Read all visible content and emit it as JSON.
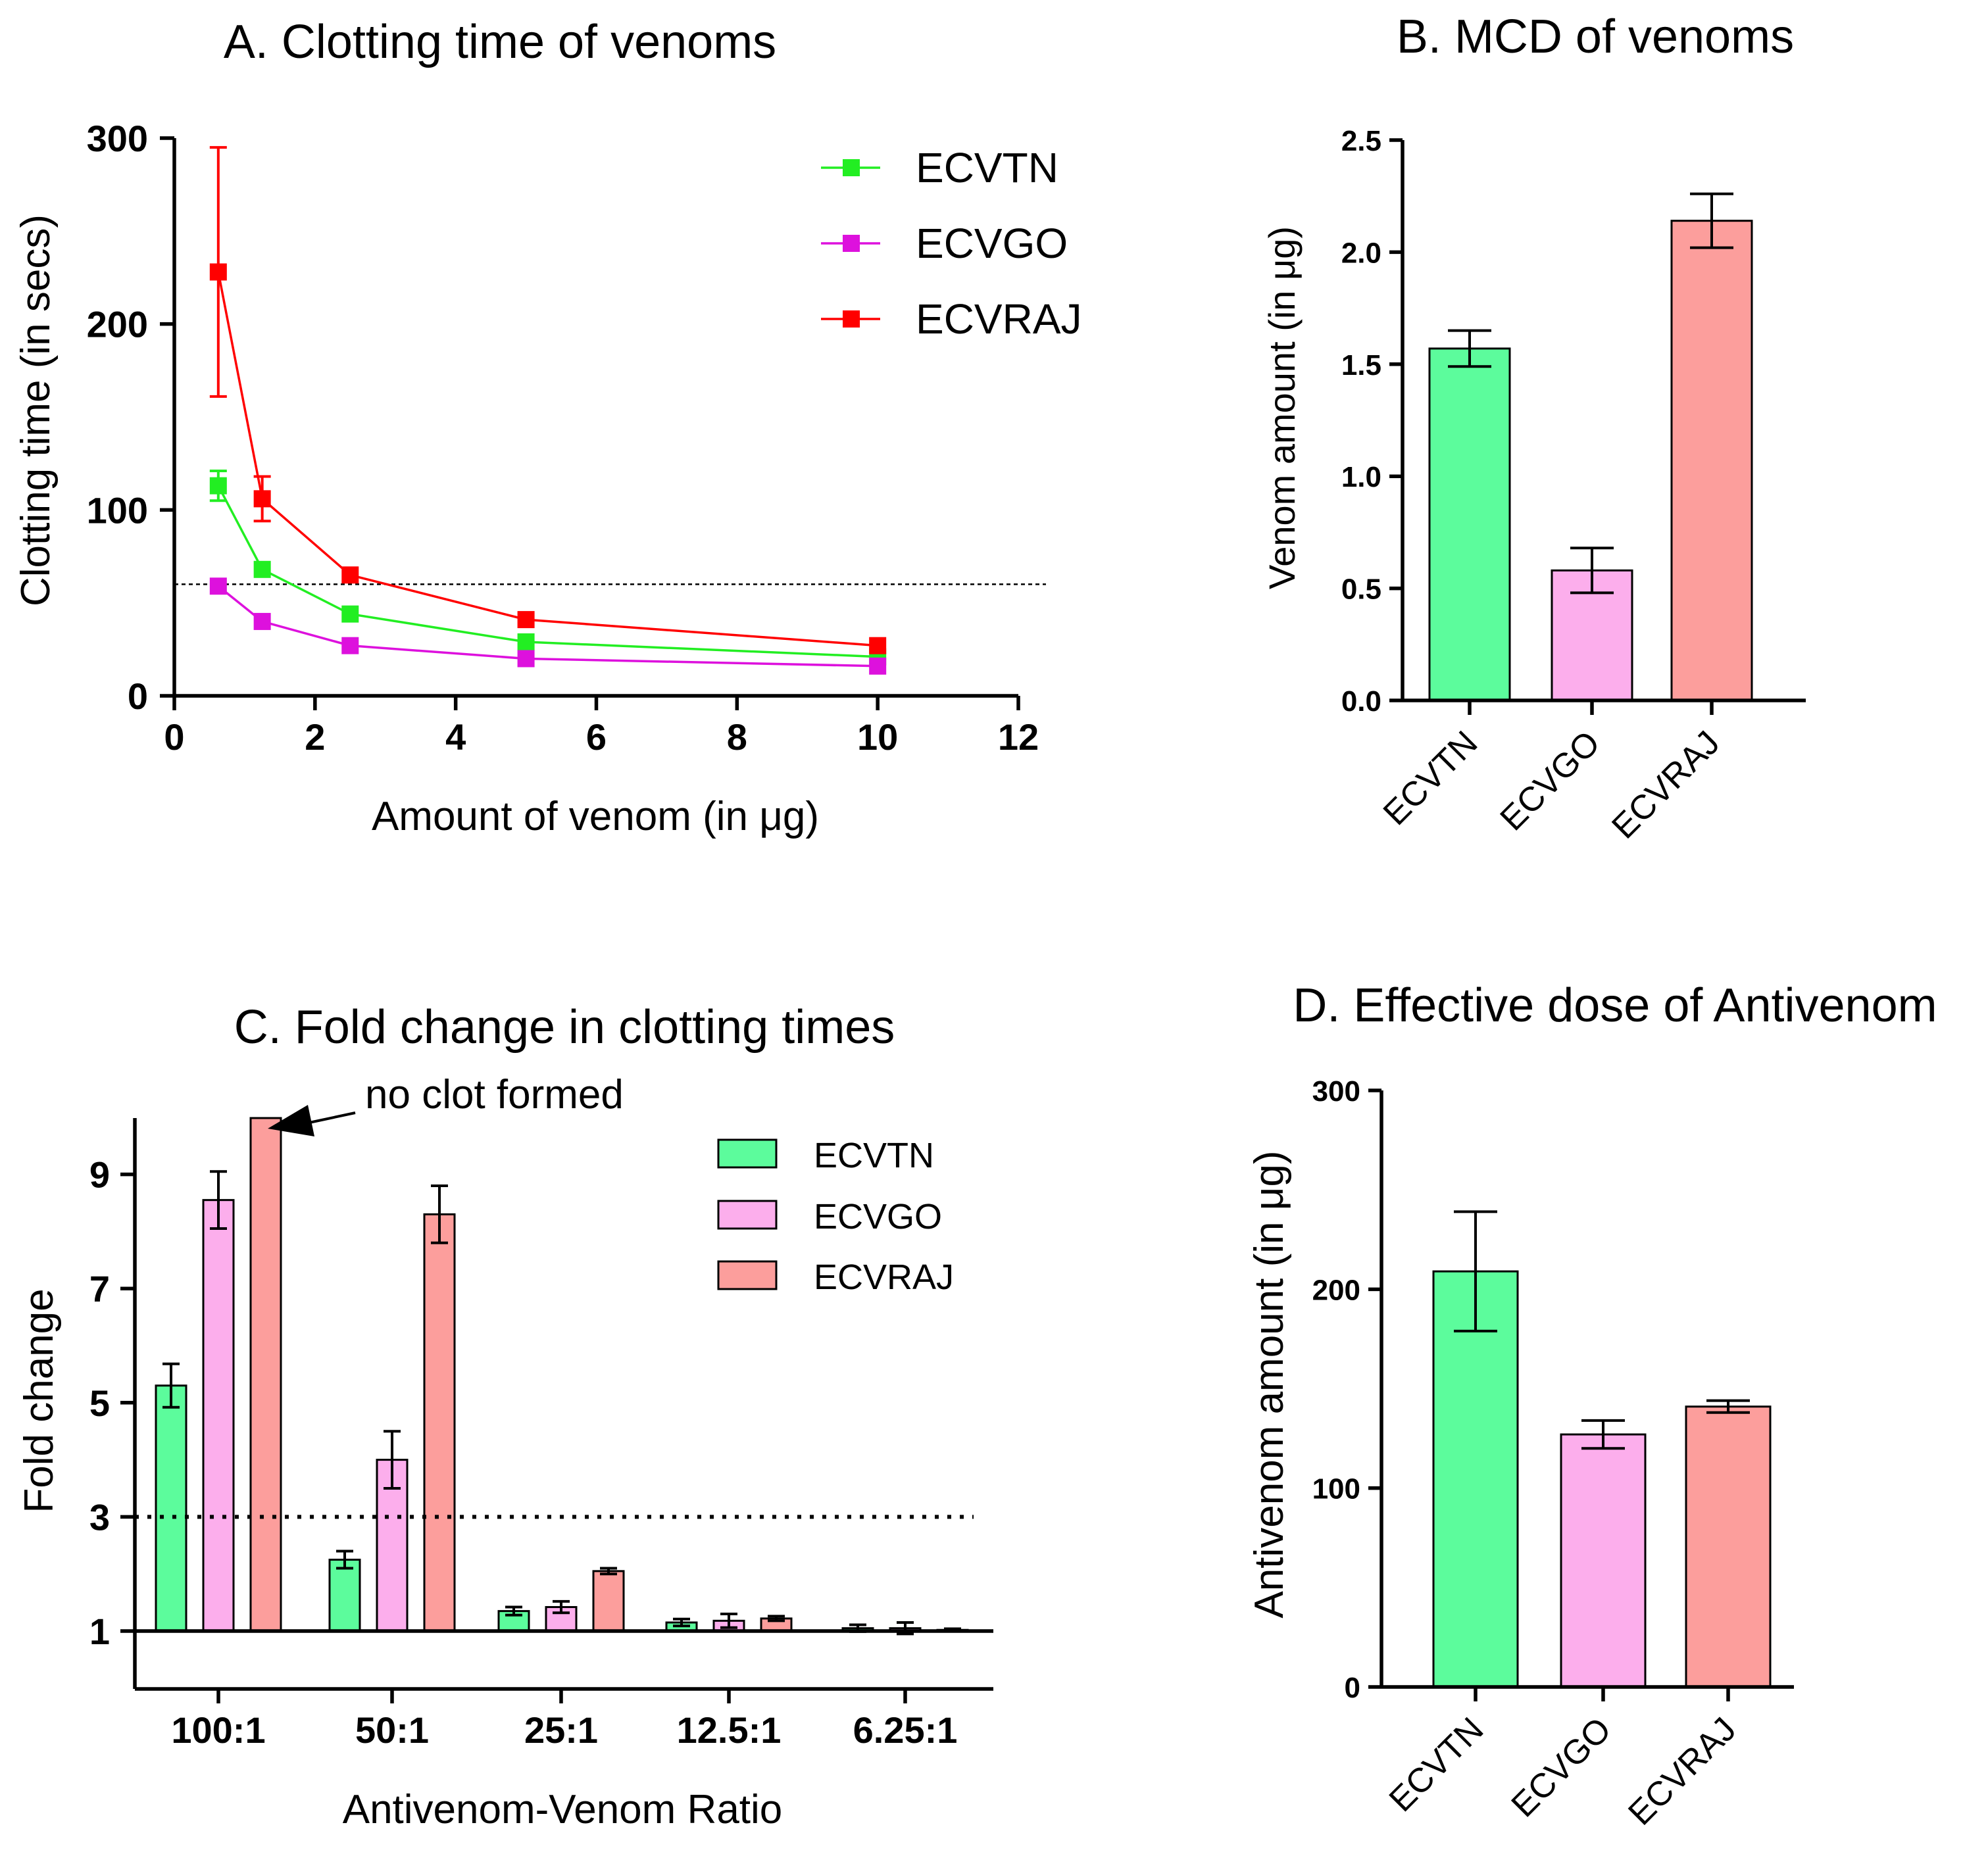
{
  "chart_data": [
    {
      "panel": "A",
      "type": "line",
      "title": "A. Clotting time of venoms",
      "xlabel": "Amount of venom (in μg)",
      "ylabel": "Clotting time (in secs)",
      "xlim": [
        0,
        12
      ],
      "ylim": [
        0,
        300
      ],
      "xticks": [
        0,
        2,
        4,
        6,
        8,
        10,
        12
      ],
      "yticks": [
        0,
        100,
        200,
        300
      ],
      "reference_line": 60,
      "x": [
        0.625,
        1.25,
        2.5,
        5,
        10
      ],
      "legend_position": "top-right",
      "series": [
        {
          "name": "ECVTN",
          "color": "#22ee22",
          "values": [
            113,
            68,
            44,
            29,
            21
          ],
          "errors": [
            8,
            0,
            0,
            0,
            0
          ]
        },
        {
          "name": "ECVGO",
          "color": "#dd11dd",
          "values": [
            59,
            40,
            27,
            20,
            16
          ],
          "errors": [
            0,
            0,
            0,
            0,
            0
          ]
        },
        {
          "name": "ECVRAJ",
          "color": "#ff0000",
          "values": [
            228,
            106,
            65,
            41,
            27
          ],
          "errors": [
            67,
            12,
            0,
            0,
            0
          ]
        }
      ]
    },
    {
      "panel": "B",
      "type": "bar",
      "title": "B. MCD of venoms",
      "xlabel": "",
      "ylabel": "Venom amount (in μg)",
      "ylim": [
        0,
        2.5
      ],
      "yticks": [
        "0.0",
        "0.5",
        "1.0",
        "1.5",
        "2.0",
        "2.5"
      ],
      "categories": [
        "ECVTN",
        "ECVGO",
        "ECVRAJ"
      ],
      "values": [
        1.57,
        0.58,
        2.14
      ],
      "errors": [
        0.08,
        0.1,
        0.12
      ],
      "colors": [
        "#5cfc9c",
        "#fcaeec",
        "#fc9e9c"
      ]
    },
    {
      "panel": "C",
      "type": "bar",
      "title": "C. Fold change in clotting times",
      "xlabel": "Antivenom-Venom Ratio",
      "ylabel": "Fold change",
      "ylim": [
        0,
        10.25
      ],
      "baseline": 1,
      "yticks": [
        1,
        3,
        5,
        7,
        9
      ],
      "reference_line": 3,
      "annotation": "no clot formed",
      "legend_position": "top-right",
      "categories": [
        "100:1",
        "50:1",
        "25:1",
        "12.5:1",
        "6.25:1"
      ],
      "series": [
        {
          "name": "ECVTN",
          "color": "#5cfc9c",
          "values": [
            5.3,
            2.25,
            1.35,
            1.15,
            1.05
          ],
          "errors": [
            0.38,
            0.15,
            0.07,
            0.06,
            0.06
          ]
        },
        {
          "name": "ECVGO",
          "color": "#fcaeec",
          "values": [
            8.55,
            4.0,
            1.42,
            1.18,
            1.05
          ],
          "errors": [
            0.5,
            0.5,
            0.1,
            0.12,
            0.1
          ]
        },
        {
          "name": "ECVRAJ",
          "color": "#fc9e9c",
          "values": [
            10.25,
            8.3,
            2.05,
            1.22,
            1.02
          ],
          "errors": [
            0,
            0.5,
            0.05,
            0.04,
            0.02
          ]
        }
      ]
    },
    {
      "panel": "D",
      "type": "bar",
      "title": "D. Effective dose of Antivenom",
      "xlabel": "",
      "ylabel": "Antivenom amount (in μg)",
      "ylim": [
        0,
        300
      ],
      "yticks": [
        0,
        100,
        200,
        300
      ],
      "categories": [
        "ECVTN",
        "ECVGO",
        "ECVRAJ"
      ],
      "values": [
        209,
        127,
        141
      ],
      "errors": [
        30,
        7,
        3
      ],
      "colors": [
        "#5cfc9c",
        "#fcaeec",
        "#fc9e9c"
      ]
    }
  ]
}
